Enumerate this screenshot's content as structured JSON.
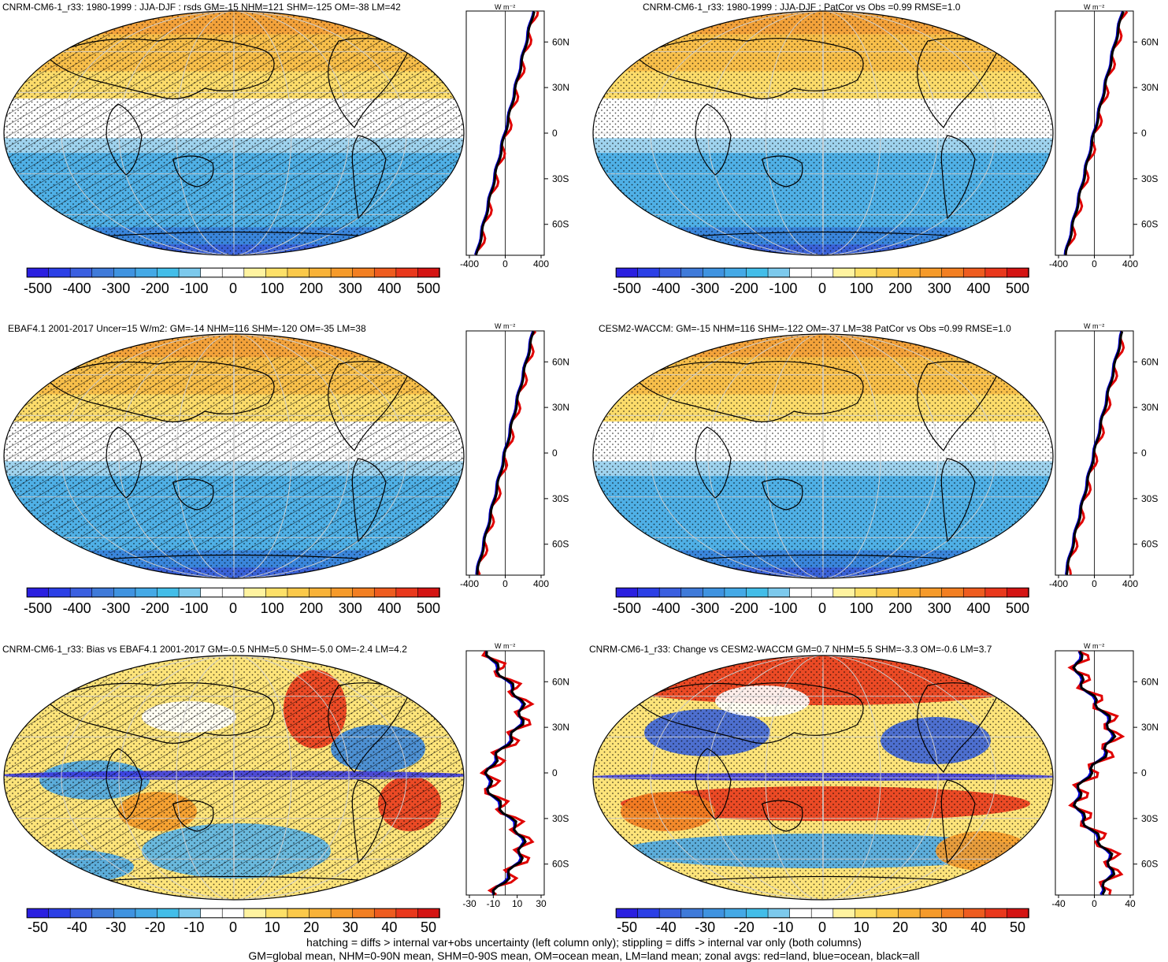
{
  "panels": [
    {
      "title": "CNRM-CM6-1_r33: 1980-1999 : JJA-DJF : rsds GM=-15 NHM=121 SHM=-125 OM=-38 LM=42",
      "unit": "W m⁻²",
      "type": "abs",
      "hatch": true
    },
    {
      "title": "CNRM-CM6-1_r33: 1980-1999 : JJA-DJF : PatCor vs Obs =0.99 RMSE=1.0",
      "unit": "W m⁻²",
      "type": "abs",
      "hatch": false
    },
    {
      "title": "EBAF4.1 2001-2017 Uncer=15 W/m2: GM=-14 NHM=116 SHM=-120 OM=-35 LM=38",
      "unit": "W m⁻²",
      "type": "abs",
      "hatch": true
    },
    {
      "title": "CESM2-WACCM: GM=-15 NHM=116 SHM=-122 OM=-37 LM=38 PatCor vs Obs =0.99 RMSE=1.0",
      "unit": "W m⁻²",
      "type": "abs",
      "hatch": false
    },
    {
      "title": "CNRM-CM6-1_r33: Bias vs EBAF4.1 2001-2017 GM=-0.5 NHM=5.0 SHM=-5.0 OM=-2.4 LM=4.2",
      "unit": "W m⁻²",
      "type": "diff",
      "hatch": true
    },
    {
      "title": "CNRM-CM6-1_r33: Change vs CESM2-WACCM GM=0.7 NHM=5.5 SHM=-3.3 OM=-0.6 LM=3.7",
      "unit": "W m⁻²",
      "type": "diff",
      "hatch": false
    }
  ],
  "lat_ticks": [
    "60N",
    "30N",
    "0",
    "30S",
    "60S"
  ],
  "zonal_x_ticks": {
    "abs": [
      "-400",
      "0",
      "400"
    ],
    "bias": [
      "-30",
      "-10",
      "10",
      "30"
    ],
    "change": [
      "-40",
      "0",
      "40"
    ]
  },
  "colorbar_labels": {
    "abs": [
      "-500",
      "-400",
      "-300",
      "-200",
      "-100",
      "0",
      "100",
      "200",
      "300",
      "400",
      "500"
    ],
    "diff": [
      "-50",
      "-40",
      "-30",
      "-20",
      "-10",
      "0",
      "10",
      "20",
      "30",
      "40",
      "50"
    ]
  },
  "colorbar_colors": [
    "#2a1fe0",
    "#2b3fe6",
    "#3a5fe0",
    "#3f7ad9",
    "#3f93e0",
    "#44a9e6",
    "#43bde8",
    "#7cc9ec",
    "#ffffff",
    "#ffffff",
    "#fff3a0",
    "#fde068",
    "#fbc94a",
    "#f8b238",
    "#f59a2a",
    "#f27f22",
    "#ee5c1f",
    "#e9381c",
    "#d41413"
  ],
  "zonal_legend_colors": {
    "land": "#e00000",
    "ocean": "#0000dd",
    "all": "#000000"
  },
  "footer": [
    "hatching = diffs > internal var+obs uncertainty (left column only); stippling = diffs > internal var only (both columns)",
    "GM=global mean, NHM=0-90N mean, SHM=0-90S mean, OM=ocean mean, LM=land mean; zonal avgs: red=land, blue=ocean, black=all"
  ]
}
